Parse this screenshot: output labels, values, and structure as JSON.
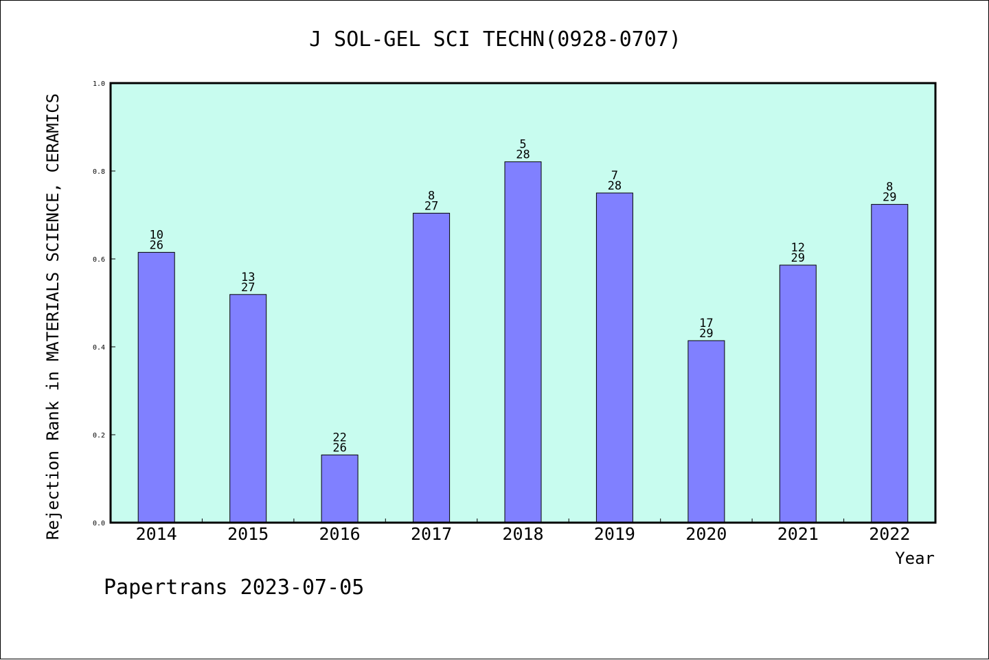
{
  "chart_data": {
    "type": "bar",
    "title": "J SOL-GEL SCI TECHN(0928-0707)",
    "xlabel": "Year",
    "ylabel": "Rejection Rank in MATERIALS SCIENCE, CERAMICS",
    "categories": [
      "2014",
      "2015",
      "2016",
      "2017",
      "2018",
      "2019",
      "2020",
      "2021",
      "2022"
    ],
    "values": [
      0.615,
      0.519,
      0.154,
      0.704,
      0.821,
      0.75,
      0.414,
      0.586,
      0.724
    ],
    "rank_labels": [
      {
        "rank": "10",
        "total": "26"
      },
      {
        "rank": "13",
        "total": "27"
      },
      {
        "rank": "22",
        "total": "26"
      },
      {
        "rank": "8",
        "total": "27"
      },
      {
        "rank": "5",
        "total": "28"
      },
      {
        "rank": "7",
        "total": "28"
      },
      {
        "rank": "17",
        "total": "29"
      },
      {
        "rank": "12",
        "total": "29"
      },
      {
        "rank": "8",
        "total": "29"
      }
    ],
    "ylim": [
      0,
      1.0
    ],
    "yticks": [
      "0.0",
      "0.2",
      "0.4",
      "0.6",
      "0.8",
      "1.0"
    ],
    "grid": false,
    "colors": {
      "plot_background": "#c8fcef",
      "bar_fill": "#8080ff",
      "bar_stroke": "#000000"
    }
  },
  "footer": "Papertrans 2023-07-05"
}
